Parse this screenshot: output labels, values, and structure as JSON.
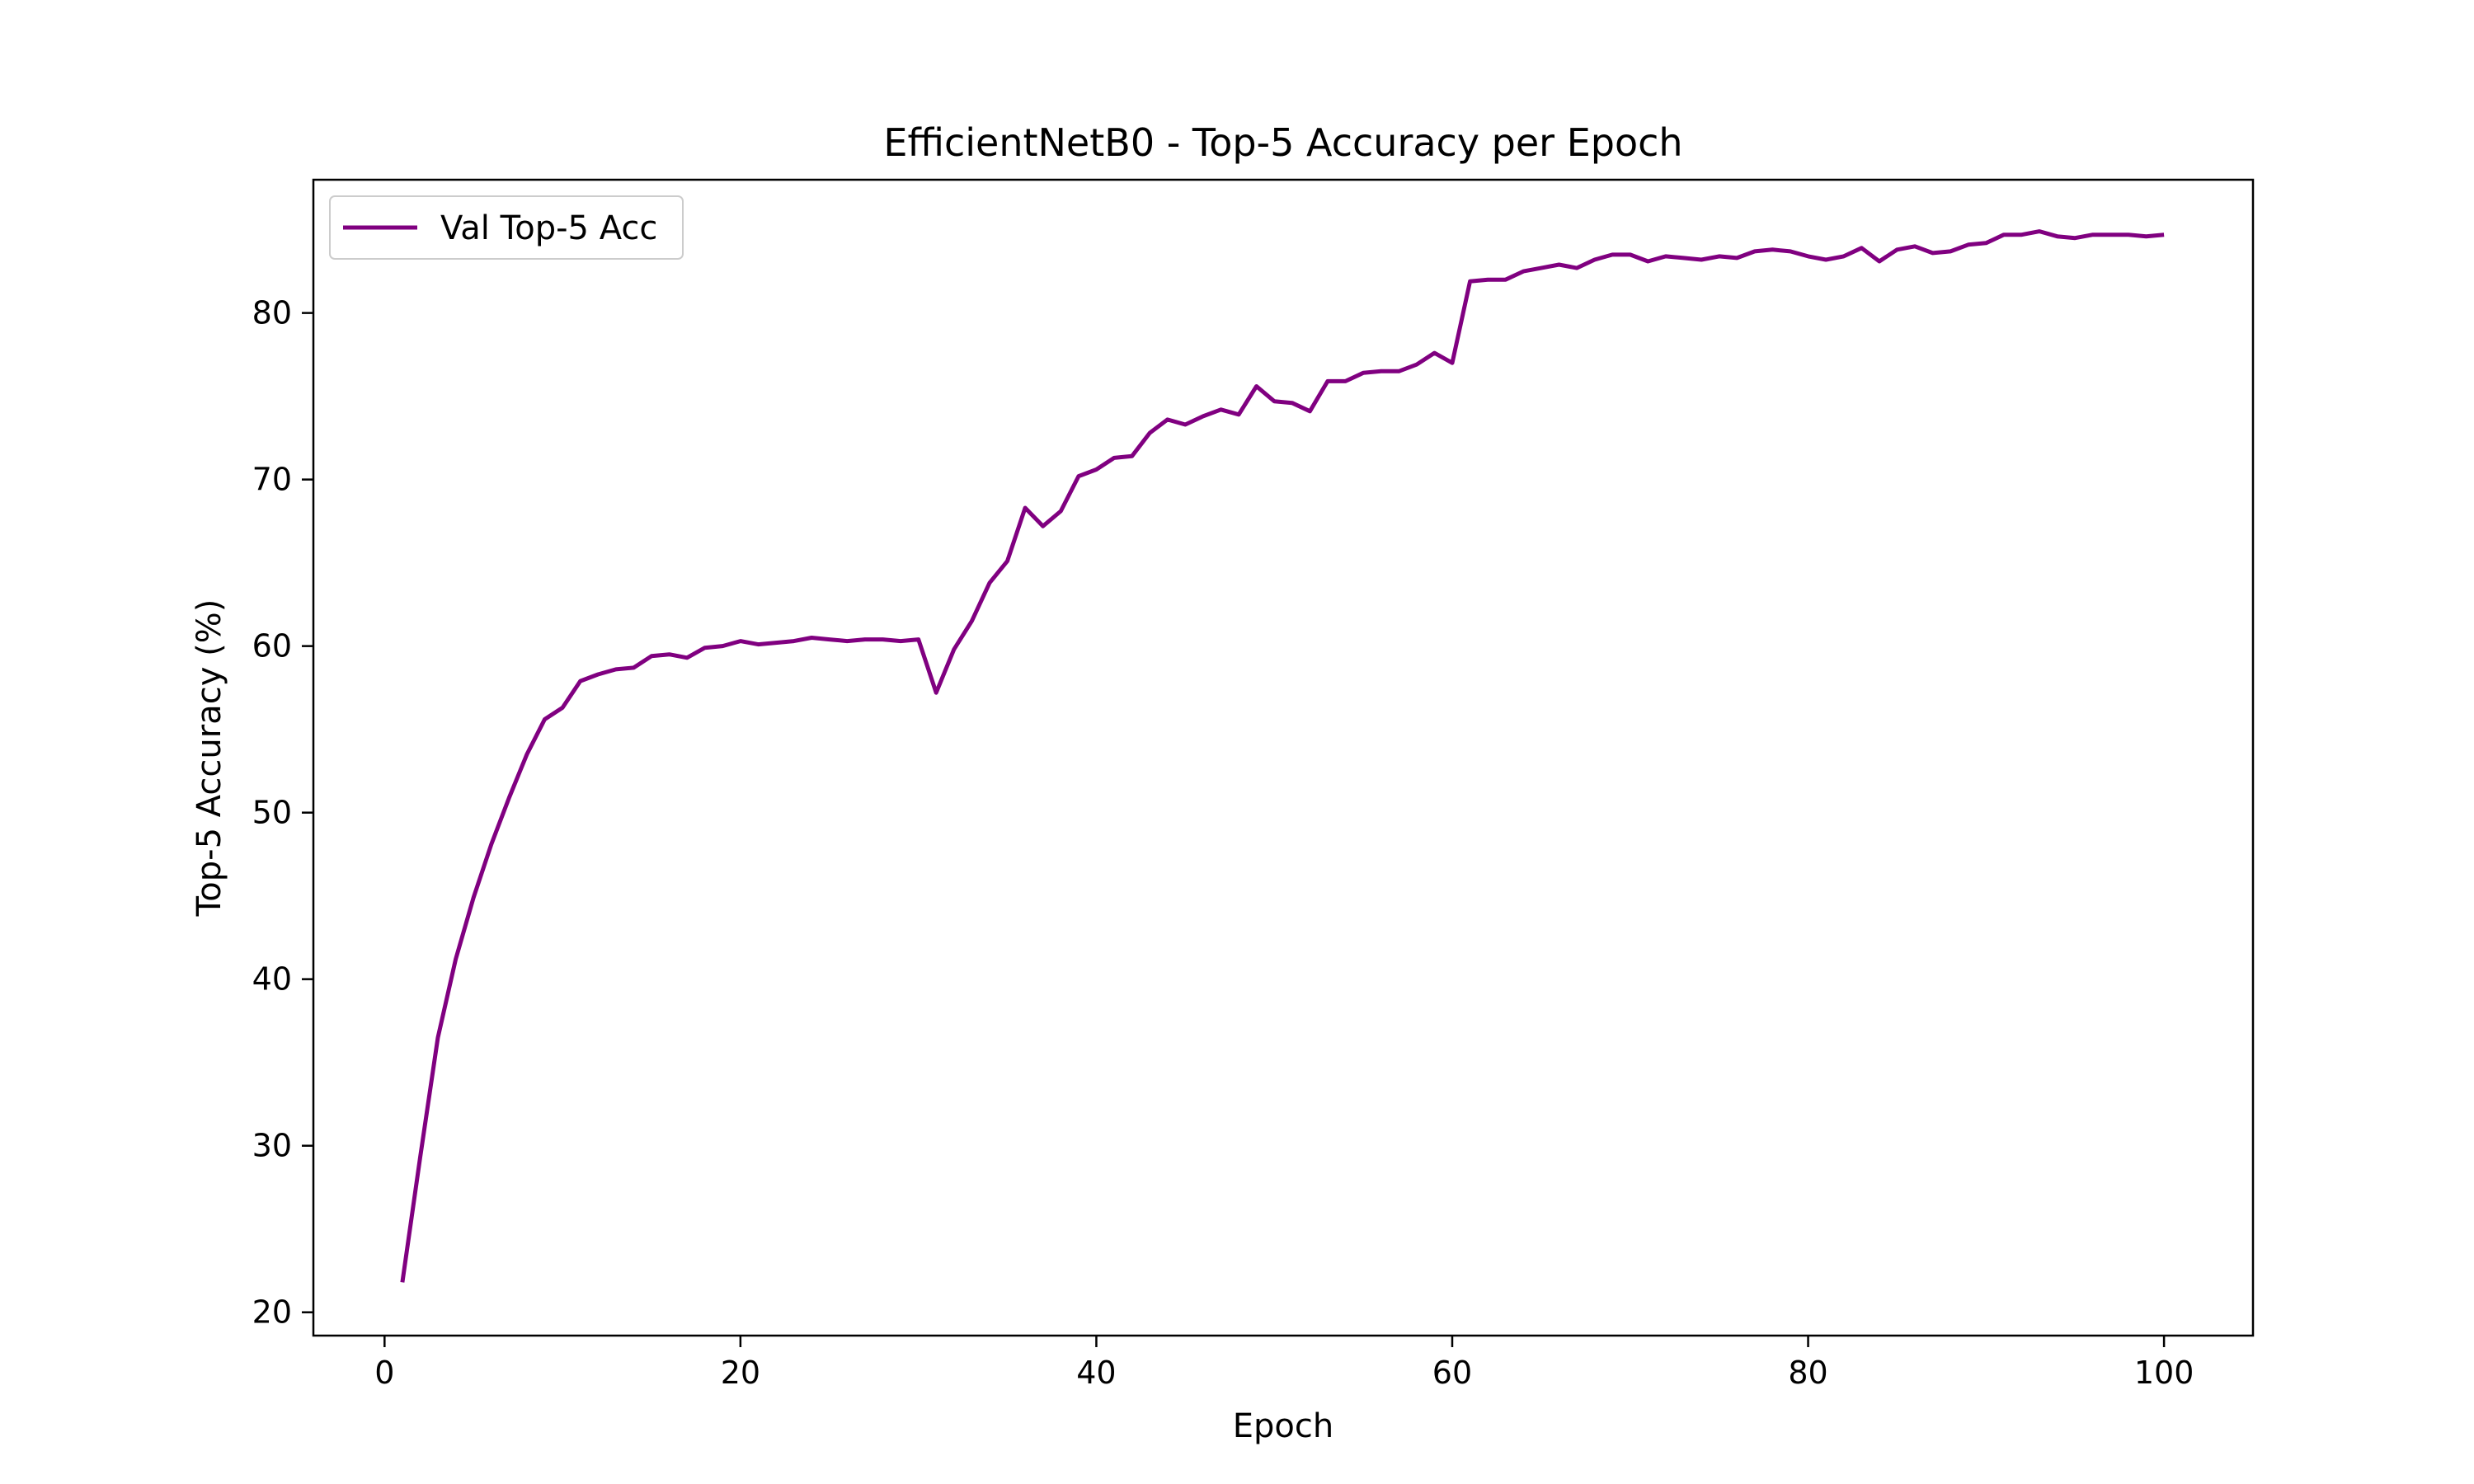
{
  "chart_data": {
    "type": "line",
    "title": "EfficientNetB0 - Top-5 Accuracy per Epoch",
    "xlabel": "Epoch",
    "ylabel": "Top-5 Accuracy (%)",
    "xlim": [
      -4,
      105
    ],
    "ylim": [
      18.6,
      88.0
    ],
    "xticks": [
      0,
      20,
      40,
      60,
      80,
      100
    ],
    "yticks": [
      20,
      30,
      40,
      50,
      60,
      70,
      80
    ],
    "grid": false,
    "legend_position": "upper-left",
    "series": [
      {
        "name": "Val Top-5 Acc",
        "color": "#800080",
        "x": [
          1,
          2,
          3,
          4,
          5,
          6,
          7,
          8,
          9,
          10,
          11,
          12,
          13,
          14,
          15,
          16,
          17,
          18,
          19,
          20,
          21,
          22,
          23,
          24,
          25,
          26,
          27,
          28,
          29,
          30,
          31,
          32,
          33,
          34,
          35,
          36,
          37,
          38,
          39,
          40,
          41,
          42,
          43,
          44,
          45,
          46,
          47,
          48,
          49,
          50,
          51,
          52,
          53,
          54,
          55,
          56,
          57,
          58,
          59,
          60,
          61,
          62,
          63,
          64,
          65,
          66,
          67,
          68,
          69,
          70,
          71,
          72,
          73,
          74,
          75,
          76,
          77,
          78,
          79,
          80,
          81,
          82,
          83,
          84,
          85,
          86,
          87,
          88,
          89,
          90,
          91,
          92,
          93,
          94,
          95,
          96,
          97,
          98,
          99,
          100
        ],
        "y": [
          21.8,
          29.3,
          36.5,
          41.2,
          44.9,
          48.1,
          50.9,
          53.5,
          55.6,
          56.3,
          57.9,
          58.3,
          58.6,
          58.7,
          59.4,
          59.5,
          59.3,
          59.9,
          60.0,
          60.3,
          60.1,
          60.2,
          60.3,
          60.5,
          60.4,
          60.3,
          60.4,
          60.4,
          60.3,
          60.4,
          57.2,
          59.8,
          61.5,
          63.8,
          65.1,
          68.3,
          67.2,
          68.1,
          70.2,
          70.6,
          71.3,
          71.4,
          72.8,
          73.6,
          73.3,
          73.8,
          74.2,
          73.9,
          75.6,
          74.7,
          74.6,
          74.1,
          75.9,
          75.9,
          76.4,
          76.5,
          76.5,
          76.9,
          77.6,
          77.0,
          81.9,
          82.0,
          82.0,
          82.5,
          82.7,
          82.9,
          82.7,
          83.2,
          83.5,
          83.5,
          83.1,
          83.4,
          83.3,
          83.2,
          83.4,
          83.3,
          83.7,
          83.8,
          83.7,
          83.4,
          83.2,
          83.4,
          83.9,
          83.1,
          83.8,
          84.0,
          83.6,
          83.7,
          84.1,
          84.2,
          84.7,
          84.7,
          84.9,
          84.6,
          84.5,
          84.7,
          84.7,
          84.7,
          84.6,
          84.7
        ]
      }
    ]
  }
}
